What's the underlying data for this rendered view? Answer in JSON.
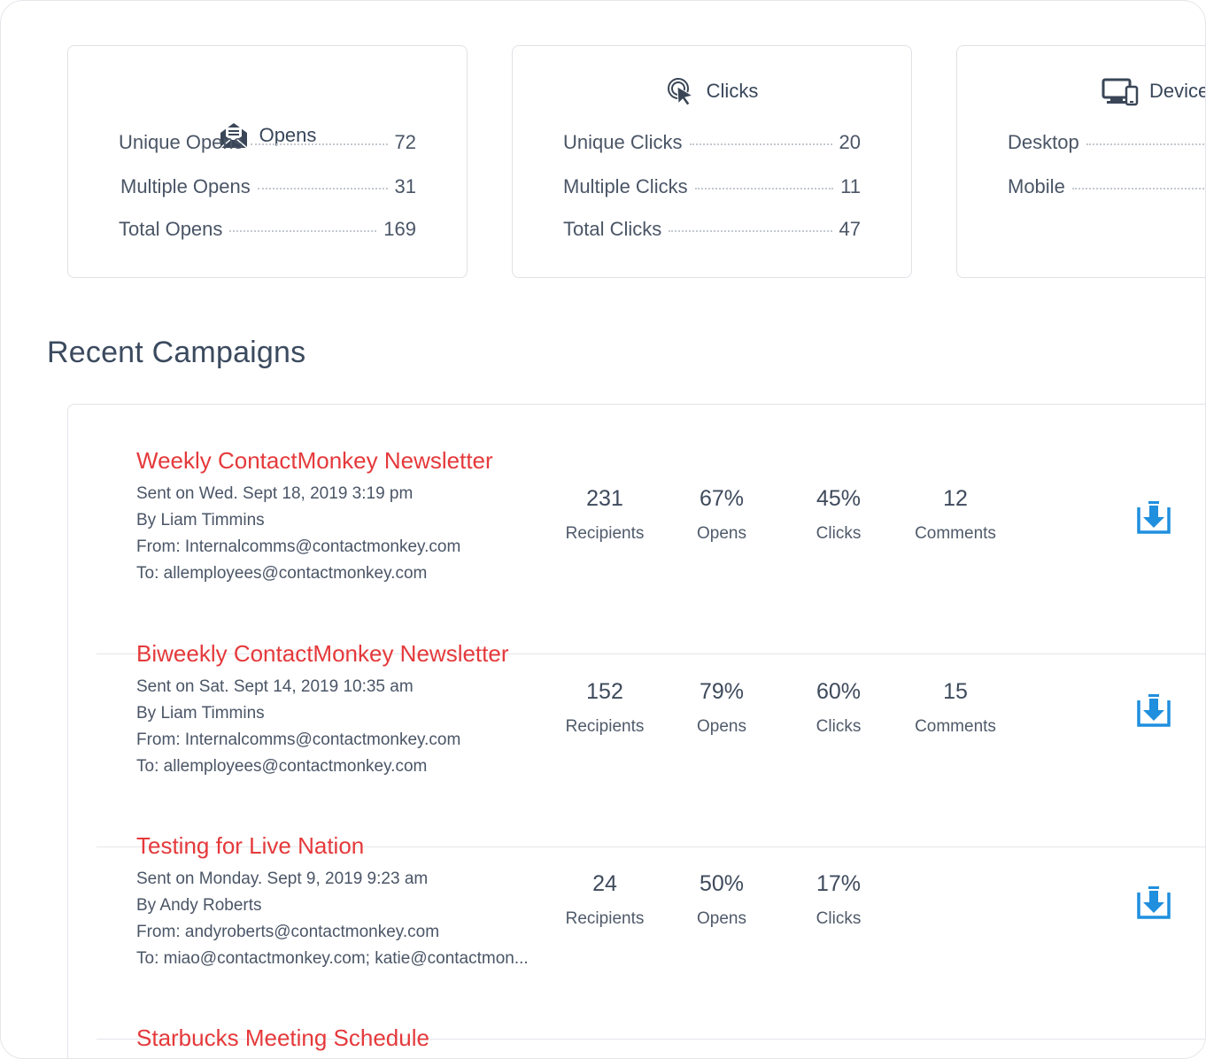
{
  "cards": [
    {
      "title": "Opens",
      "icon": "envelope-open-icon",
      "rows": [
        {
          "label": "Unique Opens",
          "value": "72"
        },
        {
          "label": "Multiple Opens",
          "value": "31"
        },
        {
          "label": "Total Opens",
          "value": "169"
        }
      ]
    },
    {
      "title": "Clicks",
      "icon": "cursor-click-icon",
      "rows": [
        {
          "label": "Unique Clicks",
          "value": "20"
        },
        {
          "label": "Multiple Clicks",
          "value": "11"
        },
        {
          "label": "Total Clicks",
          "value": "47"
        }
      ]
    },
    {
      "title": "Device",
      "icon": "devices-icon",
      "rows": [
        {
          "label": "Desktop",
          "value": ""
        },
        {
          "label": "Mobile",
          "value": ""
        }
      ]
    }
  ],
  "section_title": "Recent Campaigns",
  "campaigns": [
    {
      "title": "Weekly ContactMonkey Newsletter",
      "sent": "Sent on Wed. Sept 18, 2019 3:19 pm",
      "by": "By Liam Timmins",
      "from": "From: Internalcomms@contactmonkey.com",
      "to": "To: allemployees@contactmonkey.com",
      "recipients": "231",
      "opens": "67%",
      "clicks": "45%",
      "comments": "12"
    },
    {
      "title": "Biweekly ContactMonkey Newsletter",
      "sent": "Sent on Sat. Sept 14, 2019 10:35 am",
      "by": "By Liam Timmins",
      "from": "From: Internalcomms@contactmonkey.com",
      "to": "To: allemployees@contactmonkey.com",
      "recipients": "152",
      "opens": "79%",
      "clicks": "60%",
      "comments": "15"
    },
    {
      "title": "Testing for Live Nation",
      "sent": "Sent on Monday. Sept 9, 2019 9:23 am",
      "by": "By Andy Roberts",
      "from": "From: andyroberts@contactmonkey.com",
      "to": "To: miao@contactmonkey.com; katie@contactmon...",
      "recipients": "24",
      "opens": "50%",
      "clicks": "17%",
      "comments": ""
    },
    {
      "title": "Starbucks Meeting Schedule"
    }
  ],
  "labels": {
    "recipients": "Recipients",
    "opens": "Opens",
    "clicks": "Clicks",
    "comments": "Comments"
  },
  "colors": {
    "accent_red": "#e5393b",
    "download_blue": "#1f8fde",
    "icon_dark": "#3a4657"
  }
}
